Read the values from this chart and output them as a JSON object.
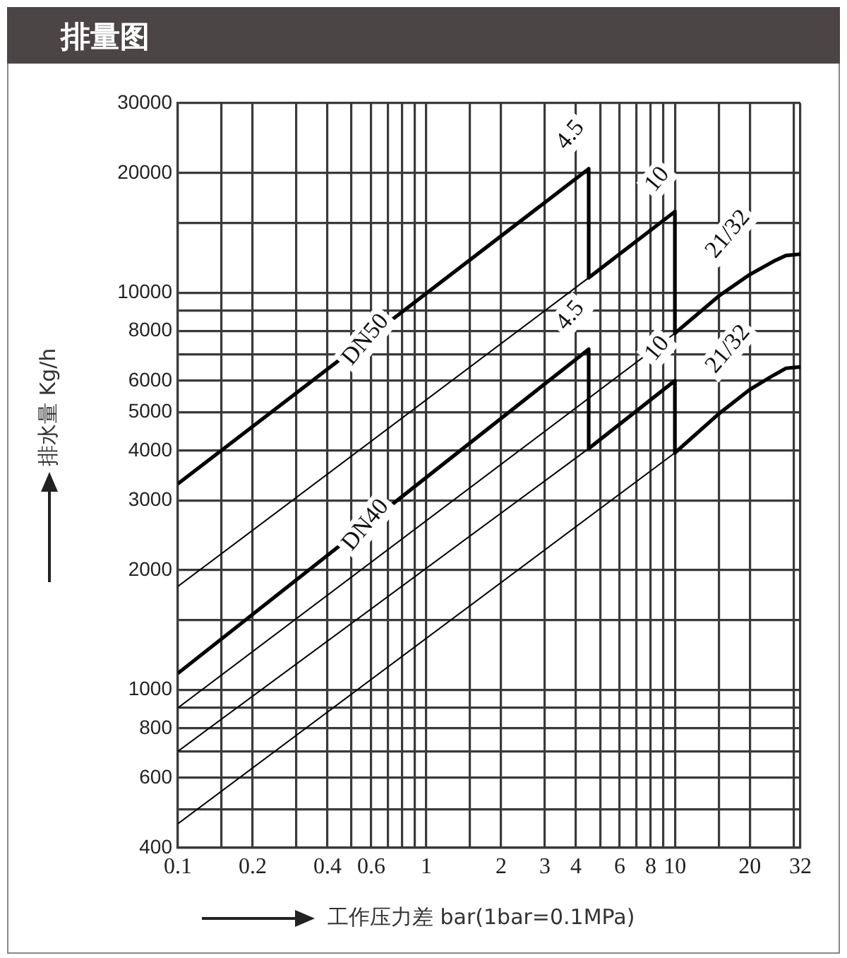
{
  "chart_data": {
    "type": "line",
    "title": "排量图",
    "xlabel": "工作压力差 bar(1bar=0.1MPa)",
    "ylabel": "排水量 Kg/h",
    "log": "xy",
    "grid": true,
    "legend": false,
    "marker": "none",
    "line_style": "solid",
    "xlim": [
      0.1,
      32
    ],
    "ylim": [
      400,
      30000
    ],
    "xticks": [
      {
        "value": 0.1,
        "label": "0.1"
      },
      {
        "value": 0.15,
        "label": null
      },
      {
        "value": 0.2,
        "label": "0.2"
      },
      {
        "value": 0.3,
        "label": null
      },
      {
        "value": 0.4,
        "label": "0.4"
      },
      {
        "value": 0.5,
        "label": null
      },
      {
        "value": 0.6,
        "label": "0.6"
      },
      {
        "value": 0.7,
        "label": null
      },
      {
        "value": 0.8,
        "label": null
      },
      {
        "value": 0.9,
        "label": null
      },
      1,
      {
        "value": 1.5,
        "label": null
      },
      2,
      3,
      4,
      {
        "value": 5,
        "label": null
      },
      6,
      {
        "value": 7,
        "label": null
      },
      8,
      {
        "value": 9,
        "label": null
      },
      10,
      {
        "value": 15,
        "label": null
      },
      20,
      {
        "value": 30,
        "label": null
      },
      32
    ],
    "yticks": [
      400,
      {
        "value": 500,
        "label": null
      },
      600,
      {
        "value": 700,
        "label": null
      },
      800,
      {
        "value": 900,
        "label": null
      },
      1000,
      {
        "value": 1500,
        "label": null
      },
      2000,
      3000,
      4000,
      5000,
      6000,
      {
        "value": 7000,
        "label": null
      },
      8000,
      {
        "value": 9000,
        "label": null
      },
      10000,
      {
        "value": 15000,
        "label": null
      },
      20000,
      30000
    ],
    "series": [
      {
        "name": "DN50",
        "color": "#000000",
        "x": [
          0.1,
          4.5,
          4.5,
          10,
          10,
          15,
          20,
          25,
          28,
          32
        ],
        "values": [
          3300,
          20500,
          10900,
          16000,
          7900,
          9800,
          11100,
          12000,
          12400,
          12500
        ]
      },
      {
        "color": "#000000",
        "x": [
          0.1,
          4.5
        ],
        "values": [
          1820,
          10900
        ]
      },
      {
        "color": "#000000",
        "x": [
          0.1,
          10
        ],
        "values": [
          900,
          7900
        ]
      },
      {
        "name": "DN40",
        "color": "#000000",
        "x": [
          0.1,
          4.5,
          4.5,
          10,
          10,
          15,
          20,
          25,
          28,
          32
        ],
        "values": [
          1100,
          7200,
          4050,
          6000,
          3950,
          4950,
          5700,
          6200,
          6450,
          6500
        ]
      },
      {
        "color": "#000000",
        "x": [
          0.1,
          4.5
        ],
        "values": [
          700,
          4050
        ]
      },
      {
        "color": "#000000",
        "x": [
          0.1,
          10
        ],
        "values": [
          460,
          3950
        ]
      }
    ],
    "annotations": [
      {
        "text": "4.5",
        "x": 4.5,
        "y": 20500
      },
      {
        "text": "10",
        "x": 10,
        "y": 16000
      },
      {
        "text": "21/32",
        "x": 20,
        "y": 11100
      },
      {
        "text": "4.5",
        "x": 4.5,
        "y": 7200
      },
      {
        "text": "10",
        "x": 10,
        "y": 6000
      },
      {
        "text": "21/32",
        "x": 20,
        "y": 5700
      }
    ]
  }
}
